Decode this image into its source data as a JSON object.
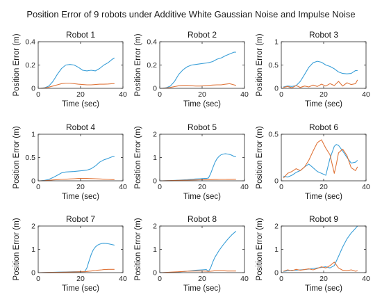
{
  "figure": {
    "title": "Position Error of 9 robots under Additive White Gaussian Noise and  Impulse Noise"
  },
  "colors": {
    "series1": "#3a9fd8",
    "series2": "#e0753a"
  },
  "chart_data": [
    {
      "type": "line",
      "title": "Robot 1",
      "xlabel": "Time (sec)",
      "ylabel": "Position Error (m)",
      "xlim": [
        0,
        40
      ],
      "ylim": [
        0,
        0.4
      ],
      "xticks": [
        0,
        20,
        40
      ],
      "yticks": [
        0,
        0.2,
        0.4
      ],
      "ytick_labels": [
        "0",
        "0.2",
        "0.4"
      ],
      "x": [
        1,
        3,
        5,
        7,
        9,
        11,
        13,
        15,
        17,
        19,
        21,
        23,
        25,
        27,
        29,
        31,
        33,
        35,
        36
      ],
      "series": [
        {
          "values": [
            0,
            0.005,
            0.02,
            0.06,
            0.12,
            0.17,
            0.2,
            0.205,
            0.2,
            0.18,
            0.155,
            0.15,
            0.155,
            0.15,
            0.17,
            0.2,
            0.22,
            0.25,
            0.26
          ]
        },
        {
          "values": [
            0,
            0.003,
            0.01,
            0.02,
            0.03,
            0.04,
            0.045,
            0.045,
            0.04,
            0.035,
            0.032,
            0.03,
            0.03,
            0.032,
            0.035,
            0.035,
            0.037,
            0.04,
            0.04
          ]
        }
      ]
    },
    {
      "type": "line",
      "title": "Robot 2",
      "xlabel": "Time (sec)",
      "ylabel": "Position Error (m)",
      "xlim": [
        0,
        40
      ],
      "ylim": [
        0,
        0.4
      ],
      "xticks": [
        0,
        20,
        40
      ],
      "yticks": [
        0,
        0.2,
        0.4
      ],
      "ytick_labels": [
        "0",
        "0.2",
        "0.4"
      ],
      "x": [
        1,
        3,
        5,
        7,
        9,
        11,
        13,
        15,
        17,
        19,
        21,
        23,
        25,
        27,
        29,
        31,
        33,
        35,
        36
      ],
      "series": [
        {
          "values": [
            0,
            0.005,
            0.02,
            0.06,
            0.12,
            0.16,
            0.185,
            0.2,
            0.205,
            0.21,
            0.215,
            0.22,
            0.23,
            0.25,
            0.26,
            0.28,
            0.295,
            0.31,
            0.31
          ]
        },
        {
          "values": [
            0,
            0.003,
            0.008,
            0.015,
            0.022,
            0.025,
            0.025,
            0.022,
            0.02,
            0.02,
            0.022,
            0.025,
            0.028,
            0.03,
            0.03,
            0.035,
            0.04,
            0.03,
            0.025
          ]
        }
      ]
    },
    {
      "type": "line",
      "title": "Robot 3",
      "xlabel": "Time (sec)",
      "ylabel": "Position Error (m)",
      "xlim": [
        0,
        40
      ],
      "ylim": [
        0,
        1
      ],
      "xticks": [
        0,
        20,
        40
      ],
      "yticks": [
        0,
        0.5,
        1
      ],
      "ytick_labels": [
        "0",
        "0.5",
        "1"
      ],
      "x": [
        1,
        3,
        5,
        7,
        9,
        11,
        13,
        15,
        17,
        19,
        21,
        23,
        25,
        27,
        29,
        31,
        33,
        35,
        36
      ],
      "series": [
        {
          "values": [
            0.03,
            0.05,
            0.04,
            0.06,
            0.15,
            0.3,
            0.45,
            0.55,
            0.58,
            0.56,
            0.5,
            0.47,
            0.42,
            0.35,
            0.32,
            0.31,
            0.32,
            0.38,
            0.38
          ]
        },
        {
          "values": [
            0.02,
            0.04,
            0.01,
            0.06,
            0.02,
            0.05,
            0.03,
            0.07,
            0.04,
            0.09,
            0.05,
            0.1,
            0.06,
            0.15,
            0.05,
            0.12,
            0.08,
            0.1,
            0.18
          ]
        }
      ]
    },
    {
      "type": "line",
      "title": "Robot 4",
      "xlabel": "Time (sec)",
      "ylabel": "Position Error (m)",
      "xlim": [
        0,
        40
      ],
      "ylim": [
        0,
        1
      ],
      "xticks": [
        0,
        20,
        40
      ],
      "yticks": [
        0,
        0.5,
        1
      ],
      "ytick_labels": [
        "0",
        "0.5",
        "1"
      ],
      "x": [
        1,
        3,
        5,
        7,
        9,
        11,
        13,
        15,
        17,
        19,
        21,
        23,
        25,
        27,
        29,
        31,
        33,
        35,
        36
      ],
      "series": [
        {
          "values": [
            0,
            0.01,
            0.03,
            0.07,
            0.12,
            0.17,
            0.19,
            0.195,
            0.2,
            0.21,
            0.22,
            0.23,
            0.26,
            0.32,
            0.4,
            0.45,
            0.48,
            0.52,
            0.52
          ]
        },
        {
          "values": [
            0,
            0.003,
            0.01,
            0.02,
            0.025,
            0.03,
            0.035,
            0.04,
            0.045,
            0.05,
            0.05,
            0.05,
            0.048,
            0.045,
            0.04,
            0.035,
            0.03,
            0.025,
            0.025
          ]
        }
      ]
    },
    {
      "type": "line",
      "title": "Robot 5",
      "xlabel": "Time (sec)",
      "ylabel": "Position Error (m)",
      "xlim": [
        0,
        40
      ],
      "ylim": [
        0,
        2
      ],
      "xticks": [
        0,
        20,
        40
      ],
      "yticks": [
        0,
        1,
        2
      ],
      "ytick_labels": [
        "0",
        "1",
        "2"
      ],
      "x": [
        1,
        5,
        9,
        13,
        17,
        19,
        21,
        22,
        23,
        24,
        25,
        26,
        27,
        28,
        29,
        30,
        31,
        32,
        33,
        34,
        35,
        36
      ],
      "series": [
        {
          "values": [
            0,
            0.01,
            0.03,
            0.05,
            0.08,
            0.09,
            0.1,
            0.1,
            0.12,
            0.3,
            0.55,
            0.78,
            0.95,
            1.05,
            1.12,
            1.15,
            1.16,
            1.15,
            1.13,
            1.1,
            1.05,
            1.03
          ]
        },
        {
          "values": [
            0,
            0.01,
            0.02,
            0.03,
            0.04,
            0.045,
            0.05,
            0.05,
            0.05,
            0.052,
            0.055,
            0.056,
            0.058,
            0.06,
            0.06,
            0.06,
            0.061,
            0.062,
            0.062,
            0.063,
            0.065,
            0.065
          ]
        }
      ]
    },
    {
      "type": "line",
      "title": "Robot 6",
      "xlabel": "Time (sec)",
      "ylabel": "Position Error (m)",
      "xlim": [
        0,
        40
      ],
      "ylim": [
        0,
        0.5
      ],
      "xticks": [
        0,
        20,
        40
      ],
      "yticks": [
        0,
        0.5
      ],
      "ytick_labels": [
        "0",
        "0.5"
      ],
      "x": [
        1,
        3,
        5,
        7,
        9,
        11,
        13,
        15,
        17,
        19,
        21,
        23,
        25,
        26,
        27,
        29,
        31,
        33,
        35,
        36
      ],
      "series": [
        {
          "values": [
            0.05,
            0.04,
            0.06,
            0.09,
            0.11,
            0.15,
            0.18,
            0.14,
            0.1,
            0.08,
            0.06,
            0.24,
            0.37,
            0.39,
            0.38,
            0.32,
            0.25,
            0.19,
            0.2,
            0.22
          ]
        },
        {
          "values": [
            0.03,
            0.08,
            0.1,
            0.13,
            0.11,
            0.15,
            0.22,
            0.32,
            0.41,
            0.44,
            0.35,
            0.28,
            0.08,
            0.18,
            0.3,
            0.34,
            0.27,
            0.14,
            0.11,
            0.15
          ]
        }
      ]
    },
    {
      "type": "line",
      "title": "Robot 7",
      "xlabel": "Time (sec)",
      "ylabel": "Position Error (m)",
      "xlim": [
        0,
        40
      ],
      "ylim": [
        0,
        2
      ],
      "xticks": [
        0,
        20,
        40
      ],
      "yticks": [
        0,
        1,
        2
      ],
      "ytick_labels": [
        "0",
        "1",
        "2"
      ],
      "x": [
        1,
        5,
        9,
        13,
        17,
        19,
        21,
        22,
        23,
        24,
        25,
        26,
        27,
        28,
        29,
        30,
        31,
        32,
        33,
        34,
        35,
        36
      ],
      "series": [
        {
          "values": [
            0,
            0.01,
            0.02,
            0.03,
            0.04,
            0.04,
            0.04,
            0.05,
            0.2,
            0.5,
            0.78,
            0.98,
            1.1,
            1.18,
            1.22,
            1.25,
            1.26,
            1.25,
            1.24,
            1.22,
            1.2,
            1.18
          ]
        },
        {
          "values": [
            0,
            0.01,
            0.015,
            0.02,
            0.03,
            0.035,
            0.04,
            0.04,
            0.05,
            0.06,
            0.07,
            0.08,
            0.09,
            0.1,
            0.11,
            0.12,
            0.13,
            0.13,
            0.14,
            0.14,
            0.14,
            0.14
          ]
        }
      ]
    },
    {
      "type": "line",
      "title": "Robot 8",
      "xlabel": "Time (sec)",
      "ylabel": "Position Error (m)",
      "xlim": [
        0,
        40
      ],
      "ylim": [
        0,
        2
      ],
      "xticks": [
        0,
        20,
        40
      ],
      "yticks": [
        0,
        1,
        2
      ],
      "ytick_labels": [
        "0",
        "1",
        "2"
      ],
      "x": [
        1,
        5,
        9,
        13,
        17,
        20,
        22,
        23,
        24,
        25,
        26,
        28,
        30,
        32,
        34,
        36
      ],
      "series": [
        {
          "values": [
            0,
            0.01,
            0.03,
            0.06,
            0.1,
            0.12,
            0.13,
            0.05,
            0.2,
            0.45,
            0.65,
            0.95,
            1.2,
            1.42,
            1.62,
            1.78
          ]
        },
        {
          "values": [
            0,
            0.02,
            0.04,
            0.06,
            0.07,
            0.07,
            0.06,
            0.05,
            0.06,
            0.07,
            0.08,
            0.08,
            0.08,
            0.07,
            0.07,
            0.07
          ]
        }
      ]
    },
    {
      "type": "line",
      "title": "Robot 9",
      "xlabel": "Time (sec)",
      "ylabel": "Position Error (m)",
      "xlim": [
        0,
        40
      ],
      "ylim": [
        0,
        2
      ],
      "xticks": [
        0,
        20,
        40
      ],
      "yticks": [
        0,
        1,
        2
      ],
      "ytick_labels": [
        "0",
        "1",
        "2"
      ],
      "x": [
        1,
        3,
        5,
        7,
        9,
        11,
        13,
        15,
        17,
        19,
        21,
        23,
        25,
        27,
        29,
        31,
        33,
        35,
        36
      ],
      "series": [
        {
          "values": [
            0.05,
            0.08,
            0.1,
            0.1,
            0.12,
            0.13,
            0.15,
            0.18,
            0.2,
            0.22,
            0.25,
            0.2,
            0.3,
            0.7,
            1.1,
            1.45,
            1.7,
            1.9,
            2.0
          ]
        },
        {
          "values": [
            0.06,
            0.12,
            0.08,
            0.14,
            0.1,
            0.13,
            0.16,
            0.12,
            0.18,
            0.25,
            0.2,
            0.3,
            0.45,
            0.2,
            0.1,
            0.08,
            0.12,
            0.06,
            0.08
          ]
        }
      ]
    }
  ]
}
